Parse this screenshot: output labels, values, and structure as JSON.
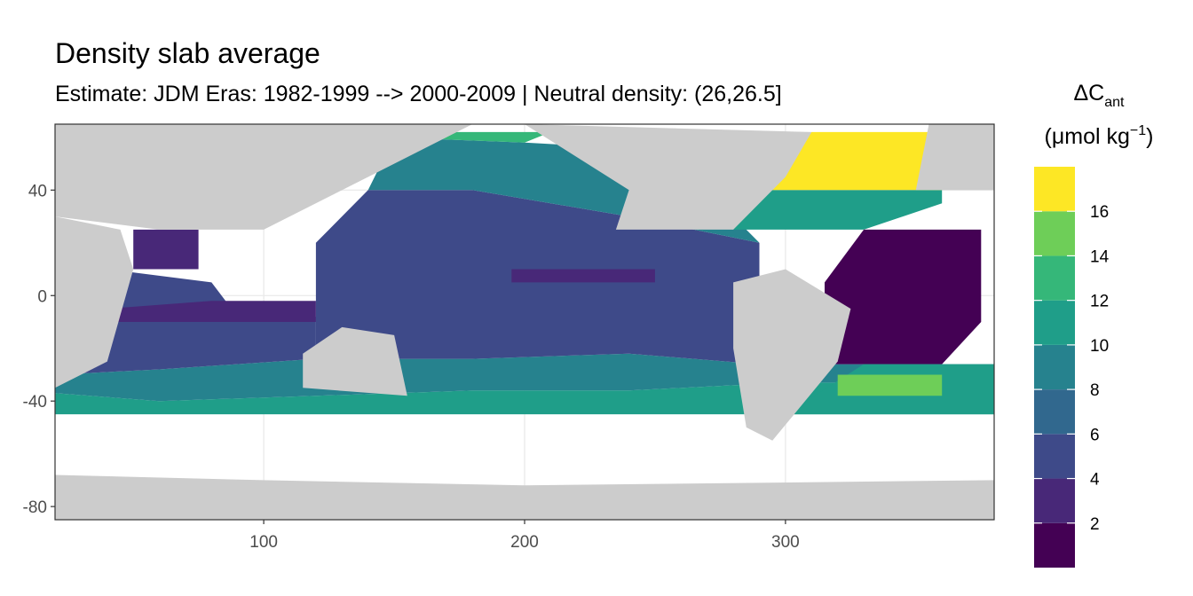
{
  "chart_data": {
    "type": "heatmap",
    "title": "Density slab average",
    "subtitle": "Estimate: JDM Eras: 1982-1999 --> 2000-2009 | Neutral density: (26,26.5]",
    "xlabel": "",
    "ylabel": "",
    "xlim": [
      20,
      380
    ],
    "ylim": [
      -85,
      65
    ],
    "x_ticks": [
      100,
      200,
      300
    ],
    "y_ticks": [
      40,
      0,
      -40,
      -80
    ],
    "x_tick_labels": [
      "100",
      "200",
      "300"
    ],
    "y_tick_labels": [
      "40",
      "0",
      "-40",
      "-80"
    ],
    "grid": true,
    "legend": {
      "title_main": "ΔC",
      "title_sub": "ant",
      "unit_pre": "(μmol kg",
      "unit_sup": "−1",
      "unit_post": ")",
      "placement": "right",
      "range": [
        0,
        18
      ],
      "breaks": [
        2,
        4,
        6,
        8,
        10,
        12,
        14,
        16
      ],
      "break_labels": [
        "2",
        "4",
        "6",
        "8",
        "10",
        "12",
        "14",
        "16"
      ],
      "bins": [
        {
          "min": 0,
          "max": 2,
          "color": "#440154"
        },
        {
          "min": 2,
          "max": 4,
          "color": "#482878"
        },
        {
          "min": 4,
          "max": 6,
          "color": "#3e4a89"
        },
        {
          "min": 6,
          "max": 8,
          "color": "#31688e"
        },
        {
          "min": 8,
          "max": 10,
          "color": "#26828e"
        },
        {
          "min": 10,
          "max": 12,
          "color": "#1f9e89"
        },
        {
          "min": 12,
          "max": 14,
          "color": "#35b779"
        },
        {
          "min": 14,
          "max": 16,
          "color": "#6ece58"
        },
        {
          "min": 16,
          "max": 18,
          "color": "#fde725"
        }
      ]
    },
    "colors": {
      "land": "#cccccc",
      "no_data": "#ffffff",
      "panel_border": "#333333",
      "grid": "#ebebeb"
    },
    "regions": [
      {
        "name": "Southern band",
        "points": [
          [
            20,
            -45
          ],
          [
            380,
            -45
          ],
          [
            380,
            -33
          ],
          [
            300,
            -33
          ],
          [
            240,
            -36
          ],
          [
            180,
            -36
          ],
          [
            120,
            -38
          ],
          [
            60,
            -40
          ],
          [
            20,
            -37
          ]
        ],
        "value": 11
      },
      {
        "name": "Southern Ocean interior",
        "points": [
          [
            20,
            -37
          ],
          [
            60,
            -40
          ],
          [
            120,
            -38
          ],
          [
            180,
            -36
          ],
          [
            240,
            -36
          ],
          [
            300,
            -33
          ],
          [
            380,
            -33
          ],
          [
            380,
            -26
          ],
          [
            290,
            -26
          ],
          [
            240,
            -22
          ],
          [
            180,
            -24
          ],
          [
            120,
            -24
          ],
          [
            60,
            -28
          ],
          [
            20,
            -30
          ]
        ],
        "value": 9
      },
      {
        "name": "Indian Ocean",
        "points": [
          [
            20,
            -30
          ],
          [
            60,
            -28
          ],
          [
            120,
            -24
          ],
          [
            120,
            -8
          ],
          [
            90,
            -8
          ],
          [
            80,
            5
          ],
          [
            40,
            10
          ],
          [
            40,
            20
          ],
          [
            20,
            20
          ]
        ],
        "value": 5
      },
      {
        "name": "Indian Ocean dark",
        "points": [
          [
            40,
            -10
          ],
          [
            120,
            -10
          ],
          [
            120,
            -2
          ],
          [
            80,
            -2
          ],
          [
            40,
            -5
          ]
        ],
        "value": 3
      },
      {
        "name": "Arabian Sea",
        "points": [
          [
            50,
            10
          ],
          [
            75,
            10
          ],
          [
            75,
            25
          ],
          [
            50,
            25
          ]
        ],
        "value": 3
      },
      {
        "name": "Pacific interior",
        "points": [
          [
            120,
            -24
          ],
          [
            180,
            -24
          ],
          [
            240,
            -22
          ],
          [
            290,
            -26
          ],
          [
            290,
            20
          ],
          [
            240,
            30
          ],
          [
            180,
            40
          ],
          [
            140,
            40
          ],
          [
            120,
            20
          ]
        ],
        "value": 5
      },
      {
        "name": "Pacific equatorial dark",
        "points": [
          [
            195,
            5
          ],
          [
            250,
            5
          ],
          [
            250,
            10
          ],
          [
            195,
            10
          ]
        ],
        "value": 3
      },
      {
        "name": "North Pacific",
        "points": [
          [
            140,
            40
          ],
          [
            180,
            40
          ],
          [
            240,
            30
          ],
          [
            290,
            20
          ],
          [
            255,
            55
          ],
          [
            200,
            58
          ],
          [
            150,
            60
          ]
        ],
        "value": 9
      },
      {
        "name": "Subarctic Pacific",
        "points": [
          [
            150,
            60
          ],
          [
            200,
            58
          ],
          [
            210,
            62
          ],
          [
            160,
            62
          ]
        ],
        "value": 13
      },
      {
        "name": "North Atlantic subtropics",
        "points": [
          [
            280,
            25
          ],
          [
            330,
            25
          ],
          [
            360,
            35
          ],
          [
            360,
            40
          ],
          [
            290,
            40
          ]
        ],
        "value": 11
      },
      {
        "name": "North Atlantic north",
        "points": [
          [
            290,
            40
          ],
          [
            360,
            40
          ],
          [
            370,
            55
          ],
          [
            370,
            62
          ],
          [
            310,
            62
          ]
        ],
        "value": 17
      },
      {
        "name": "Tropical Atlantic",
        "points": [
          [
            315,
            -26
          ],
          [
            360,
            -26
          ],
          [
            375,
            -10
          ],
          [
            375,
            25
          ],
          [
            330,
            25
          ],
          [
            315,
            5
          ]
        ],
        "value": 1
      },
      {
        "name": "South Atlantic",
        "points": [
          [
            300,
            -45
          ],
          [
            380,
            -45
          ],
          [
            380,
            -26
          ],
          [
            330,
            -26
          ]
        ],
        "value": 11
      },
      {
        "name": "South Atlantic core",
        "points": [
          [
            320,
            -38
          ],
          [
            360,
            -38
          ],
          [
            360,
            -30
          ],
          [
            320,
            -30
          ]
        ],
        "value": 15
      },
      {
        "name": "Antarctic land",
        "points": [
          [
            20,
            -85
          ],
          [
            380,
            -85
          ],
          [
            380,
            -70
          ],
          [
            200,
            -72
          ],
          [
            100,
            -70
          ],
          [
            20,
            -68
          ]
        ],
        "value": null
      },
      {
        "name": "Africa",
        "points": [
          [
            20,
            -35
          ],
          [
            40,
            -25
          ],
          [
            50,
            10
          ],
          [
            45,
            25
          ],
          [
            20,
            30
          ]
        ],
        "value": null
      },
      {
        "name": "Asia",
        "points": [
          [
            60,
            25
          ],
          [
            100,
            25
          ],
          [
            140,
            45
          ],
          [
            180,
            65
          ],
          [
            20,
            65
          ],
          [
            20,
            30
          ]
        ],
        "value": null
      },
      {
        "name": "Australia",
        "points": [
          [
            115,
            -35
          ],
          [
            155,
            -38
          ],
          [
            150,
            -15
          ],
          [
            130,
            -12
          ],
          [
            115,
            -22
          ]
        ],
        "value": null
      },
      {
        "name": "North America",
        "points": [
          [
            235,
            25
          ],
          [
            280,
            25
          ],
          [
            300,
            45
          ],
          [
            310,
            62
          ],
          [
            200,
            65
          ],
          [
            240,
            40
          ]
        ],
        "value": null
      },
      {
        "name": "South America",
        "points": [
          [
            280,
            5
          ],
          [
            300,
            10
          ],
          [
            325,
            -5
          ],
          [
            320,
            -25
          ],
          [
            295,
            -55
          ],
          [
            285,
            -50
          ],
          [
            280,
            -20
          ]
        ],
        "value": null
      },
      {
        "name": "Europe",
        "points": [
          [
            350,
            40
          ],
          [
            380,
            40
          ],
          [
            380,
            65
          ],
          [
            355,
            65
          ]
        ],
        "value": null
      }
    ]
  }
}
